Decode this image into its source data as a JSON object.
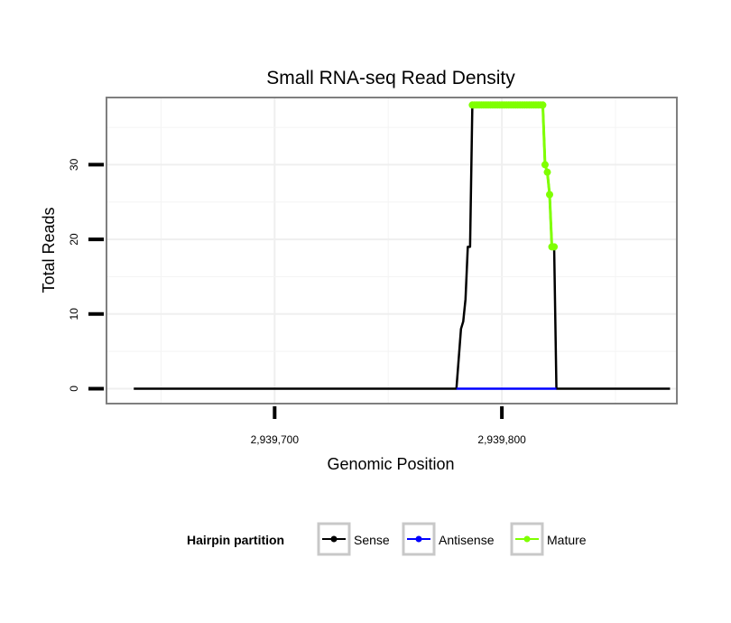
{
  "chart_data": {
    "type": "line",
    "title": "Small RNA-seq Read Density",
    "xlabel": "Genomic Position",
    "ylabel": "Total Reads",
    "xlim": [
      2939626,
      2939877
    ],
    "ylim": [
      -2,
      39
    ],
    "x_ticks": [
      {
        "value": 2939700,
        "label": "2,939,700"
      },
      {
        "value": 2939800,
        "label": "2,939,800"
      }
    ],
    "y_ticks": [
      {
        "value": 0,
        "label": "0"
      },
      {
        "value": 10,
        "label": "10"
      },
      {
        "value": 20,
        "label": "20"
      },
      {
        "value": 30,
        "label": "30"
      }
    ],
    "grid": true,
    "legend": {
      "title": "Hairpin partition",
      "placement": "bottom",
      "entries": [
        {
          "name": "Sense",
          "color": "#000000"
        },
        {
          "name": "Antisense",
          "color": "#0000ff"
        },
        {
          "name": "Mature",
          "color": "#7fff00"
        }
      ]
    },
    "series": [
      {
        "name": "Sense",
        "color": "#000000",
        "points": [
          [
            2939638,
            0
          ],
          [
            2939780,
            0
          ],
          [
            2939782,
            8
          ],
          [
            2939783,
            9
          ],
          [
            2939784,
            12
          ],
          [
            2939785,
            19
          ],
          [
            2939786,
            19
          ],
          [
            2939787,
            38
          ],
          [
            2939818,
            38
          ],
          [
            2939819,
            30
          ],
          [
            2939820,
            29
          ],
          [
            2939821,
            26
          ],
          [
            2939822,
            19
          ],
          [
            2939823,
            19
          ],
          [
            2939824,
            0
          ],
          [
            2939874,
            0
          ]
        ]
      },
      {
        "name": "Antisense",
        "color": "#0000ff",
        "points": [
          [
            2939780,
            0
          ],
          [
            2939824,
            0
          ]
        ]
      },
      {
        "name": "Mature",
        "color": "#7fff00",
        "points": [
          [
            2939787,
            38
          ],
          [
            2939788,
            38
          ],
          [
            2939789,
            38
          ],
          [
            2939790,
            38
          ],
          [
            2939791,
            38
          ],
          [
            2939792,
            38
          ],
          [
            2939793,
            38
          ],
          [
            2939794,
            38
          ],
          [
            2939795,
            38
          ],
          [
            2939796,
            38
          ],
          [
            2939797,
            38
          ],
          [
            2939798,
            38
          ],
          [
            2939799,
            38
          ],
          [
            2939800,
            38
          ],
          [
            2939801,
            38
          ],
          [
            2939802,
            38
          ],
          [
            2939803,
            38
          ],
          [
            2939804,
            38
          ],
          [
            2939805,
            38
          ],
          [
            2939806,
            38
          ],
          [
            2939807,
            38
          ],
          [
            2939808,
            38
          ],
          [
            2939809,
            38
          ],
          [
            2939810,
            38
          ],
          [
            2939811,
            38
          ],
          [
            2939812,
            38
          ],
          [
            2939813,
            38
          ],
          [
            2939814,
            38
          ],
          [
            2939815,
            38
          ],
          [
            2939816,
            38
          ],
          [
            2939817,
            38
          ],
          [
            2939818,
            38
          ],
          [
            2939819,
            30
          ],
          [
            2939820,
            29
          ],
          [
            2939821,
            26
          ],
          [
            2939822,
            19
          ],
          [
            2939823,
            19
          ]
        ]
      }
    ]
  }
}
